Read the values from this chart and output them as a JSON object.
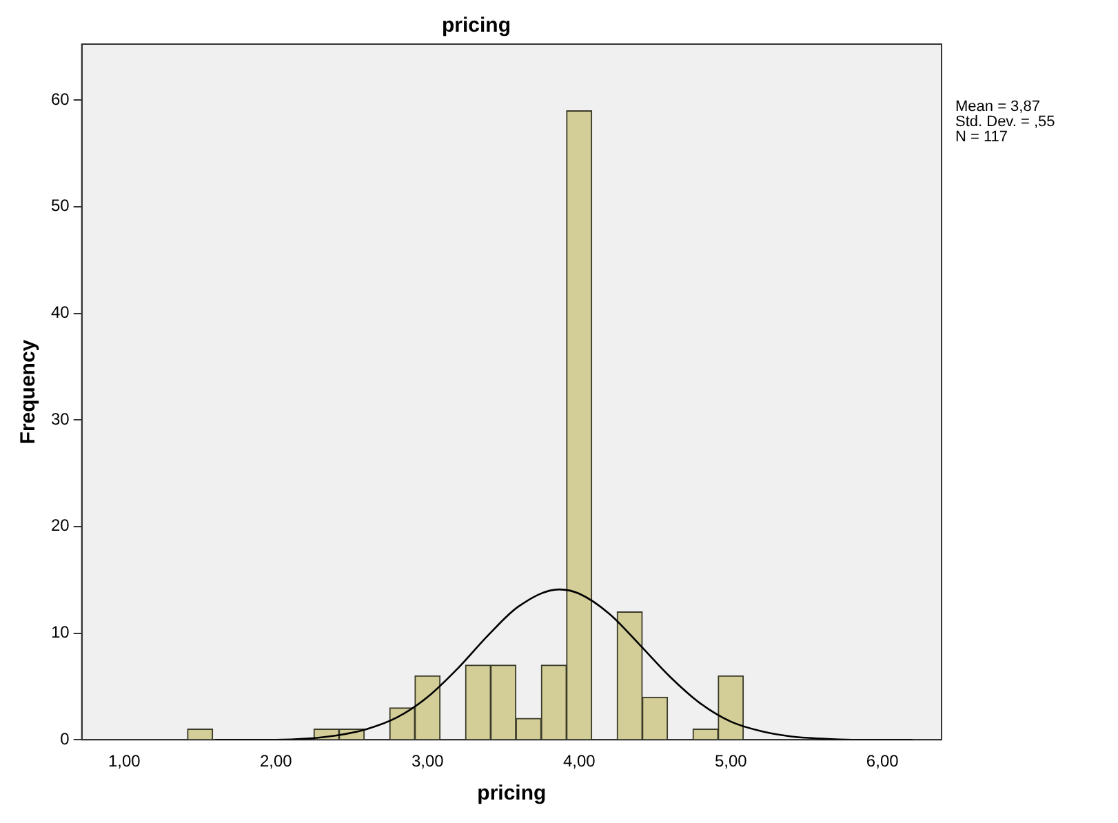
{
  "chart_data": {
    "type": "histogram",
    "title": "pricing",
    "xlabel": "pricing",
    "ylabel": "Frequency",
    "annotations": [
      "Mean = 3,87",
      "Std. Dev. = ,55",
      "N = 117"
    ],
    "bins": [
      1.417,
      1.583,
      1.75,
      1.917,
      2.083,
      2.25,
      2.417,
      2.583,
      2.75,
      2.917,
      3.083,
      3.25,
      3.417,
      3.583,
      3.75,
      3.917,
      4.083,
      4.25,
      4.417,
      4.583,
      4.75,
      4.917,
      5.083
    ],
    "series": [
      {
        "type": "histogram",
        "color": "#d3ce97",
        "values": [
          1,
          0,
          0,
          0,
          0,
          1,
          1,
          0,
          3,
          6,
          0,
          7,
          7,
          2,
          7,
          59,
          0,
          12,
          4,
          0,
          1,
          6
        ]
      },
      {
        "type": "line",
        "color": "#000000",
        "x": [
          1.6,
          1.8,
          2.0,
          2.2,
          2.4,
          2.6,
          2.8,
          3.0,
          3.2,
          3.4,
          3.6,
          3.87,
          4.0,
          4.2,
          4.4,
          4.6,
          4.8,
          5.0,
          5.2,
          5.4,
          5.6,
          5.8,
          6.0,
          6.2
        ],
        "values": [
          0,
          0,
          0,
          0.1,
          0.4,
          1.0,
          2.1,
          4.0,
          6.7,
          9.8,
          12.5,
          14.1,
          13.7,
          11.8,
          8.9,
          5.9,
          3.4,
          1.7,
          0.8,
          0.3,
          0.1,
          0,
          0,
          0
        ]
      }
    ],
    "xlim": [
      0.72,
      6.39
    ],
    "xticks": [
      {
        "value": 1,
        "label": "1,00"
      },
      {
        "value": 2,
        "label": "2,00"
      },
      {
        "value": 3,
        "label": "3,00"
      },
      {
        "value": 4,
        "label": "4,00"
      },
      {
        "value": 5,
        "label": "5,00"
      },
      {
        "value": 6,
        "label": "6,00"
      }
    ],
    "ylim": [
      0,
      65.25
    ],
    "yticks": [
      0,
      10,
      20,
      30,
      40,
      50,
      60
    ],
    "grid": false,
    "legend": false
  }
}
